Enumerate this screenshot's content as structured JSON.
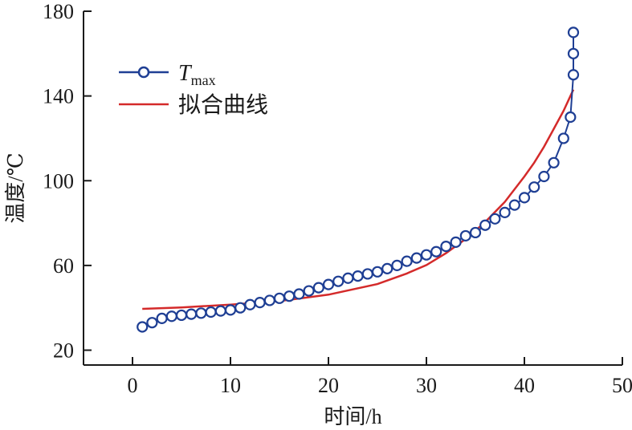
{
  "chart_data": {
    "type": "line",
    "xlabel": "时间/h",
    "ylabel": "温度/℃",
    "xlim": [
      -5,
      50
    ],
    "ylim": [
      13,
      180
    ],
    "xticks": [
      0,
      10,
      20,
      30,
      40,
      50
    ],
    "xtick_labels": [
      "0",
      "10",
      "20",
      "30",
      "40",
      "50"
    ],
    "yticks": [
      20,
      60,
      100,
      140,
      180
    ],
    "ytick_labels": [
      "20",
      "60",
      "100",
      "140",
      "180"
    ],
    "grid": false,
    "legend_position": "top-left",
    "series": [
      {
        "name": "T",
        "name_subscript": "max",
        "color": "#1f3f94",
        "marker": "circle",
        "x": [
          1,
          2,
          3,
          4,
          5,
          6,
          7,
          8,
          9,
          10,
          11,
          12,
          13,
          14,
          15,
          16,
          17,
          18,
          19,
          20,
          21,
          22,
          23,
          24,
          25,
          26,
          27,
          28,
          29,
          30,
          31,
          32,
          33,
          34,
          35,
          36,
          37,
          38,
          39,
          40,
          41,
          42,
          43,
          44,
          44.7,
          45,
          45,
          45
        ],
        "y": [
          31,
          33,
          35,
          36,
          36.5,
          37,
          37.5,
          38,
          38.5,
          39,
          40,
          41.5,
          42.5,
          43.5,
          44.5,
          45.5,
          46.5,
          48,
          49.5,
          51,
          52.5,
          54,
          55,
          56,
          57,
          58.5,
          60,
          62,
          63.5,
          65,
          66.5,
          69,
          71,
          74,
          75.5,
          79,
          82,
          85,
          88.5,
          92,
          97,
          102,
          108.5,
          120,
          130,
          150,
          160,
          170
        ]
      },
      {
        "name": "拟合曲线",
        "color": "#d42a2a",
        "marker": "none",
        "x": [
          1,
          5,
          10,
          15,
          20,
          25,
          28,
          30,
          32,
          34,
          36,
          38,
          40,
          41,
          42,
          43,
          44,
          45
        ],
        "y": [
          39.5,
          40.2,
          41.5,
          43.2,
          46.2,
          51.2,
          56.2,
          60.2,
          65.8,
          72.5,
          80.5,
          90,
          102,
          108.5,
          116,
          124.5,
          133,
          143
        ]
      }
    ]
  }
}
